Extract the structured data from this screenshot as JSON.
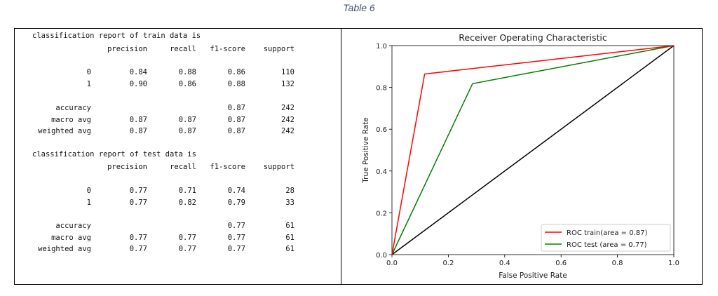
{
  "caption": "Table 6",
  "reports": [
    {
      "title": "classification report of train data is",
      "headers": [
        "precision",
        "recall",
        "f1-score",
        "support"
      ],
      "rows": [
        [
          "0",
          "0.84",
          "0.88",
          "0.86",
          "110"
        ],
        [
          "1",
          "0.90",
          "0.86",
          "0.88",
          "132"
        ]
      ],
      "summary": [
        [
          "accuracy",
          "",
          "",
          "0.87",
          "242"
        ],
        [
          "macro avg",
          "0.87",
          "0.87",
          "0.87",
          "242"
        ],
        [
          "weighted avg",
          "0.87",
          "0.87",
          "0.87",
          "242"
        ]
      ]
    },
    {
      "title": "classification report of test data is",
      "headers": [
        "precision",
        "recall",
        "f1-score",
        "support"
      ],
      "rows": [
        [
          "0",
          "0.77",
          "0.71",
          "0.74",
          "28"
        ],
        [
          "1",
          "0.77",
          "0.82",
          "0.79",
          "33"
        ]
      ],
      "summary": [
        [
          "accuracy",
          "",
          "",
          "0.77",
          "61"
        ],
        [
          "macro avg",
          "0.77",
          "0.77",
          "0.77",
          "61"
        ],
        [
          "weighted avg",
          "0.77",
          "0.77",
          "0.77",
          "61"
        ]
      ]
    }
  ],
  "chart_data": {
    "type": "line",
    "title": "Receiver Operating Characteristic",
    "xlabel": "False Positive Rate",
    "ylabel": "True Positive Rate",
    "xlim": [
      0,
      1
    ],
    "ylim": [
      0,
      1
    ],
    "xticks": [
      "0.0",
      "0.2",
      "0.4",
      "0.6",
      "0.8",
      "1.0"
    ],
    "yticks": [
      "0.0",
      "0.2",
      "0.4",
      "0.6",
      "0.8",
      "1.0"
    ],
    "legend_position": "lower-right",
    "series": [
      {
        "name": "ROC train(area = 0.87)",
        "color": "#ff0000",
        "x": [
          0,
          0.116,
          1
        ],
        "y": [
          0,
          0.864,
          1
        ]
      },
      {
        "name": "ROC test (area = 0.77)",
        "color": "#008000",
        "x": [
          0,
          0.286,
          1
        ],
        "y": [
          0,
          0.818,
          1
        ]
      },
      {
        "name": "",
        "color": "#000000",
        "x": [
          0,
          1
        ],
        "y": [
          0,
          1
        ]
      }
    ]
  }
}
